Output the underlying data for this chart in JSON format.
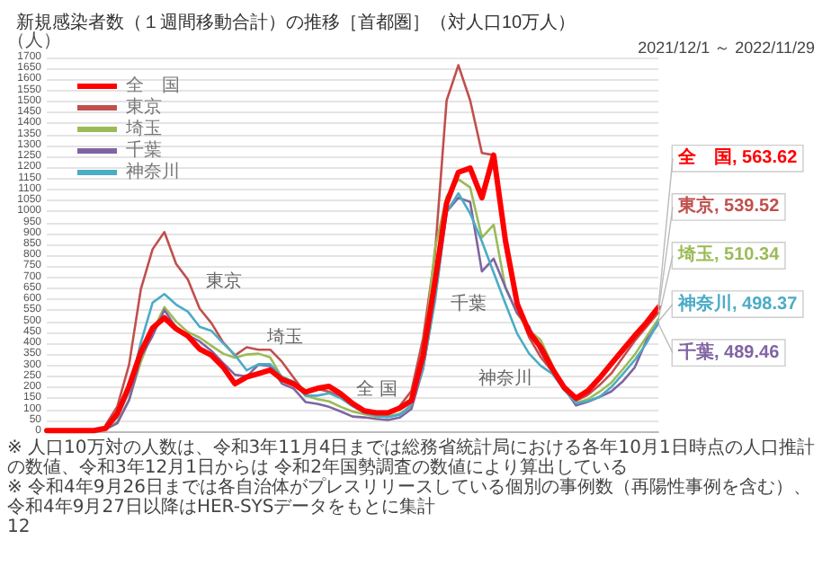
{
  "chart_data": {
    "type": "line",
    "title": "新規感染者数（１週間移動合計）の推移［首都圏］（対人口10万人）",
    "subtitle": "2021/12/1 ～ 2022/11/29",
    "ylabel": "（人）",
    "categories": [
      null,
      null,
      null,
      null,
      null,
      null,
      null,
      null,
      null,
      null,
      null,
      null,
      null,
      null,
      null,
      null,
      null,
      null,
      null,
      null,
      null,
      null,
      null,
      null,
      null,
      null,
      null,
      null,
      null,
      null,
      null,
      null,
      null,
      null,
      null,
      null,
      null,
      null,
      null,
      null,
      null,
      null,
      null,
      null,
      null,
      null,
      null,
      null,
      null,
      null,
      null,
      null,
      null
    ],
    "ylim": [
      0,
      1700
    ],
    "yticks": [
      0,
      50,
      100,
      150,
      200,
      250,
      300,
      350,
      400,
      450,
      500,
      550,
      600,
      650,
      700,
      750,
      800,
      850,
      900,
      950,
      1000,
      1050,
      1100,
      1150,
      1200,
      1250,
      1300,
      1350,
      1400,
      1450,
      1500,
      1550,
      1600,
      1650,
      1700
    ],
    "tick_labels": "y",
    "grid": "y",
    "legend": "top left",
    "marker": "none",
    "line_style": "solid",
    "series": [
      {
        "name": "全　国",
        "color": "#ff0000",
        "values": [
          3,
          3,
          3,
          3,
          3,
          13,
          80,
          205,
          360,
          470,
          516,
          466,
          433,
          374,
          346,
          292,
          216,
          247,
          262,
          278,
          236,
          215,
          178,
          195,
          204,
          170,
          126,
          93,
          84,
          84,
          105,
          139,
          344,
          677,
          1038,
          1178,
          1197,
          1062,
          1256,
          867,
          580,
          452,
          382,
          283,
          199,
          150,
          184,
          242,
          307,
          371,
          435,
          495,
          563.62
        ],
        "value_labels": [
          null,
          null,
          null,
          null,
          null,
          null,
          null,
          null,
          null,
          null,
          null,
          null,
          null,
          null,
          null,
          null,
          null,
          null,
          null,
          null,
          null,
          null,
          null,
          null,
          null,
          null,
          null,
          null,
          null,
          null,
          null,
          null,
          null,
          null,
          null,
          null,
          null,
          null,
          null,
          null,
          null,
          null,
          null,
          null,
          null,
          null,
          null,
          null,
          null,
          null,
          null,
          null,
          "全　国, 563.62"
        ]
      },
      {
        "name": "東京",
        "color": "#c0504d",
        "values": [
          null,
          null,
          null,
          null,
          null,
          28,
          113,
          303,
          646,
          828,
          906,
          761,
          690,
          558,
          492,
          404,
          345,
          382,
          371,
          371,
          316,
          243,
          173,
          193,
          180,
          155,
          124,
          86,
          75,
          75,
          114,
          183,
          423,
          800,
          1505,
          1665,
          1505,
          1266,
          1256,
          832,
          582,
          429,
          337,
          271,
          187,
          139,
          165,
          210,
          263,
          337,
          412,
          475,
          539.52
        ],
        "value_labels": [
          null,
          null,
          null,
          null,
          null,
          null,
          null,
          null,
          null,
          null,
          null,
          null,
          null,
          null,
          null,
          null,
          null,
          null,
          null,
          null,
          null,
          null,
          null,
          null,
          null,
          null,
          null,
          null,
          null,
          null,
          null,
          null,
          null,
          null,
          null,
          null,
          null,
          null,
          null,
          null,
          null,
          null,
          null,
          null,
          null,
          null,
          null,
          null,
          null,
          null,
          null,
          null,
          "東京, 539.52"
        ]
      },
      {
        "name": "埼玉",
        "color": "#9bbb59",
        "values": [
          null,
          null,
          null,
          null,
          null,
          11,
          42,
          144,
          316,
          453,
          565,
          499,
          451,
          426,
          389,
          353,
          334,
          349,
          353,
          336,
          244,
          220,
          162,
          146,
          136,
          111,
          90,
          78,
          67,
          67,
          80,
          106,
          337,
          828,
          1067,
          1146,
          1109,
          881,
          939,
          652,
          536,
          459,
          415,
          300,
          194,
          128,
          145,
          180,
          221,
          283,
          349,
          430,
          510.34
        ],
        "value_labels": [
          null,
          null,
          null,
          null,
          null,
          null,
          null,
          null,
          null,
          null,
          null,
          null,
          null,
          null,
          null,
          null,
          null,
          null,
          null,
          null,
          null,
          null,
          null,
          null,
          null,
          null,
          null,
          null,
          null,
          null,
          null,
          null,
          null,
          null,
          null,
          null,
          null,
          null,
          null,
          null,
          null,
          null,
          null,
          null,
          null,
          null,
          null,
          null,
          null,
          null,
          null,
          null,
          "埼玉, 510.34"
        ]
      },
      {
        "name": "千葉",
        "color": "#8064a2",
        "values": [
          null,
          null,
          null,
          null,
          null,
          9,
          36,
          141,
          338,
          434,
          552,
          470,
          437,
          409,
          366,
          310,
          257,
          249,
          303,
          296,
          216,
          194,
          133,
          125,
          111,
          90,
          67,
          63,
          56,
          51,
          62,
          101,
          284,
          604,
          998,
          1062,
          1043,
          727,
          785,
          655,
          536,
          478,
          360,
          272,
          195,
          117,
          134,
          156,
          181,
          228,
          291,
          414,
          489.46
        ],
        "value_labels": [
          null,
          null,
          null,
          null,
          null,
          null,
          null,
          null,
          null,
          null,
          null,
          null,
          null,
          null,
          null,
          null,
          null,
          null,
          null,
          null,
          null,
          null,
          null,
          null,
          null,
          null,
          null,
          null,
          null,
          null,
          null,
          null,
          null,
          null,
          null,
          null,
          null,
          null,
          null,
          null,
          null,
          null,
          null,
          null,
          null,
          null,
          null,
          null,
          null,
          null,
          null,
          null,
          "千葉, 489.46"
        ]
      },
      {
        "name": "神奈川",
        "color": "#4bacc6",
        "values": [
          null,
          null,
          null,
          null,
          null,
          14,
          63,
          181,
          403,
          585,
          624,
          576,
          544,
          475,
          457,
          400,
          347,
          277,
          305,
          305,
          248,
          225,
          162,
          162,
          173,
          150,
          114,
          84,
          71,
          64,
          75,
          120,
          286,
          587,
          998,
          1082,
          991,
          863,
          721,
          580,
          444,
          354,
          298,
          261,
          188,
          128,
          137,
          156,
          201,
          261,
          324,
          401,
          498.37
        ],
        "value_labels": [
          null,
          null,
          null,
          null,
          null,
          null,
          null,
          null,
          null,
          null,
          null,
          null,
          null,
          null,
          null,
          null,
          null,
          null,
          null,
          null,
          null,
          null,
          null,
          null,
          null,
          null,
          null,
          null,
          null,
          null,
          null,
          null,
          null,
          null,
          null,
          null,
          null,
          null,
          null,
          null,
          null,
          null,
          null,
          null,
          null,
          null,
          null,
          null,
          null,
          null,
          null,
          null,
          "神奈川, 498.37"
        ]
      }
    ],
    "annotations": [
      "東京",
      "埼玉",
      "全 国",
      "千葉",
      "神奈川",
      "※ 人口10万対の人数は、令和3年11月4日までは総務省統計局における各年10月1日時点の人口推計の数値、令和3年12月1日からは 令和2年国勢調査の数値により算出している",
      "※ 令和4年9月26日までは各自治体がプレスリリースしている個別の事例数（再陽性事例を含む）、令和4年9月27日以降はHER-SYSデータをもとに集計",
      "12"
    ]
  }
}
